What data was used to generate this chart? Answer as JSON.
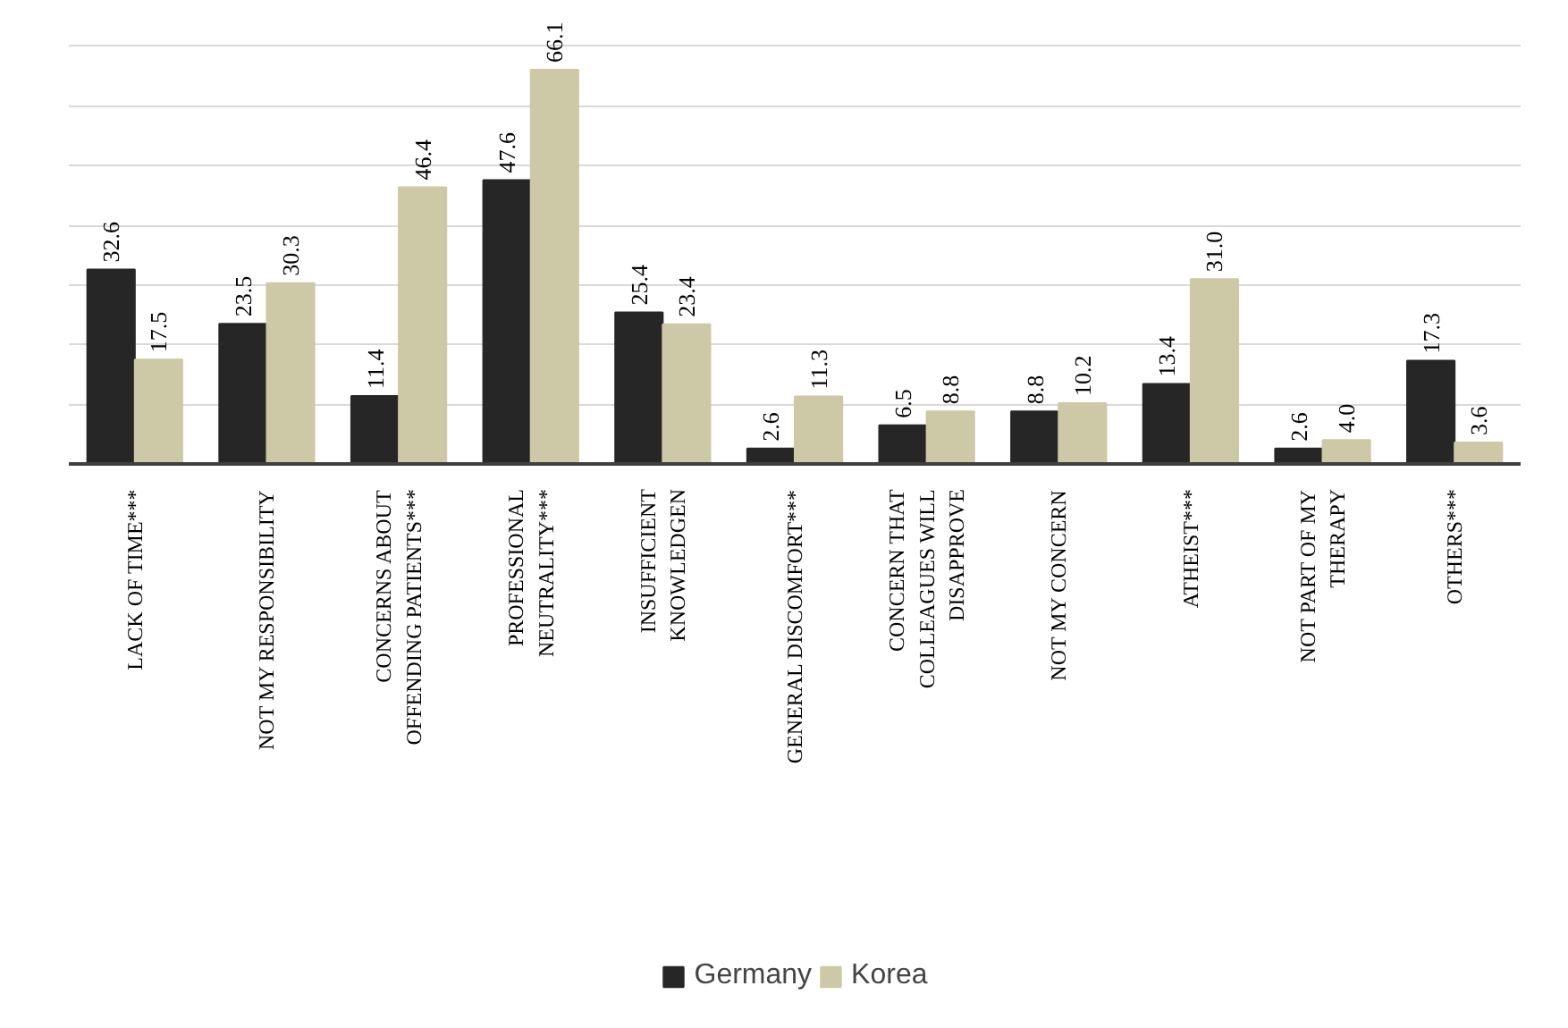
{
  "chart_data": {
    "type": "bar",
    "categories": [
      "LACK OF TIME***",
      "NOT MY RESPONSIBILITY",
      "CONCERNS ABOUT OFFENDING PATIENTS***",
      "PROFESSIONAL NEUTRALITY***",
      "INSUFFICIENT KNOWLEDGEN",
      "GENERAL DISCOMFORT***",
      "CONCERN THAT COLLEAGUES WILL DISAPPROVE",
      "NOT MY CONCERN",
      "ATHEIST***",
      "NOT PART OF MY THERAPY",
      "OTHERS***"
    ],
    "series": [
      {
        "name": "Germany",
        "color": "#262626",
        "values": [
          32.6,
          23.5,
          11.4,
          47.6,
          25.4,
          2.6,
          6.5,
          8.8,
          13.4,
          2.6,
          17.3
        ],
        "value_labels": [
          "32.6",
          "23.5",
          "11.4",
          "47.6",
          "25.4",
          "2.6",
          "6.5",
          "8.8",
          "13.4",
          "2.6",
          "17.3"
        ]
      },
      {
        "name": "Korea",
        "color": "#cdc8a6",
        "values": [
          17.5,
          30.3,
          46.4,
          66.1,
          23.4,
          11.3,
          8.8,
          10.2,
          31.0,
          4.0,
          3.6
        ],
        "value_labels": [
          "17.5",
          "30.3",
          "46.4",
          "66.1",
          "23.4",
          "11.3",
          "8.8",
          "10.2",
          "31.0",
          "4.0",
          "3.6"
        ]
      }
    ],
    "tick_labels": "x",
    "grid": "y",
    "legend": "bottom"
  }
}
